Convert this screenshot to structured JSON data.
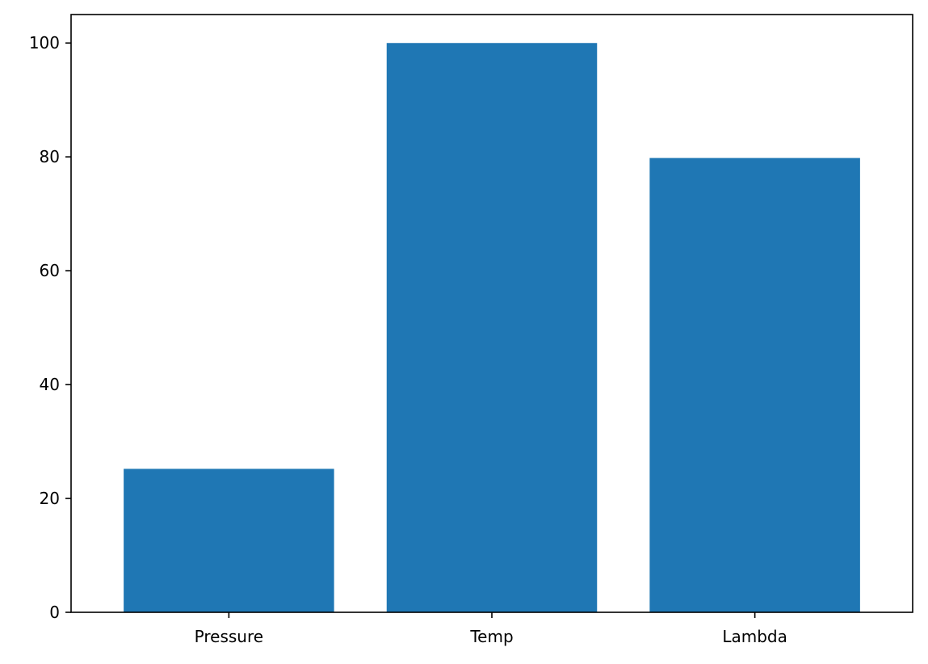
{
  "chart_data": {
    "type": "bar",
    "categories": [
      "Pressure",
      "Temp",
      "Lambda"
    ],
    "values": [
      25.2,
      100,
      79.8
    ],
    "title": "",
    "xlabel": "",
    "ylabel": "",
    "ylim": [
      0,
      105
    ],
    "yticks": [
      0,
      20,
      40,
      60,
      80,
      100
    ],
    "grid": false,
    "bar_color": "#1f77b4"
  }
}
